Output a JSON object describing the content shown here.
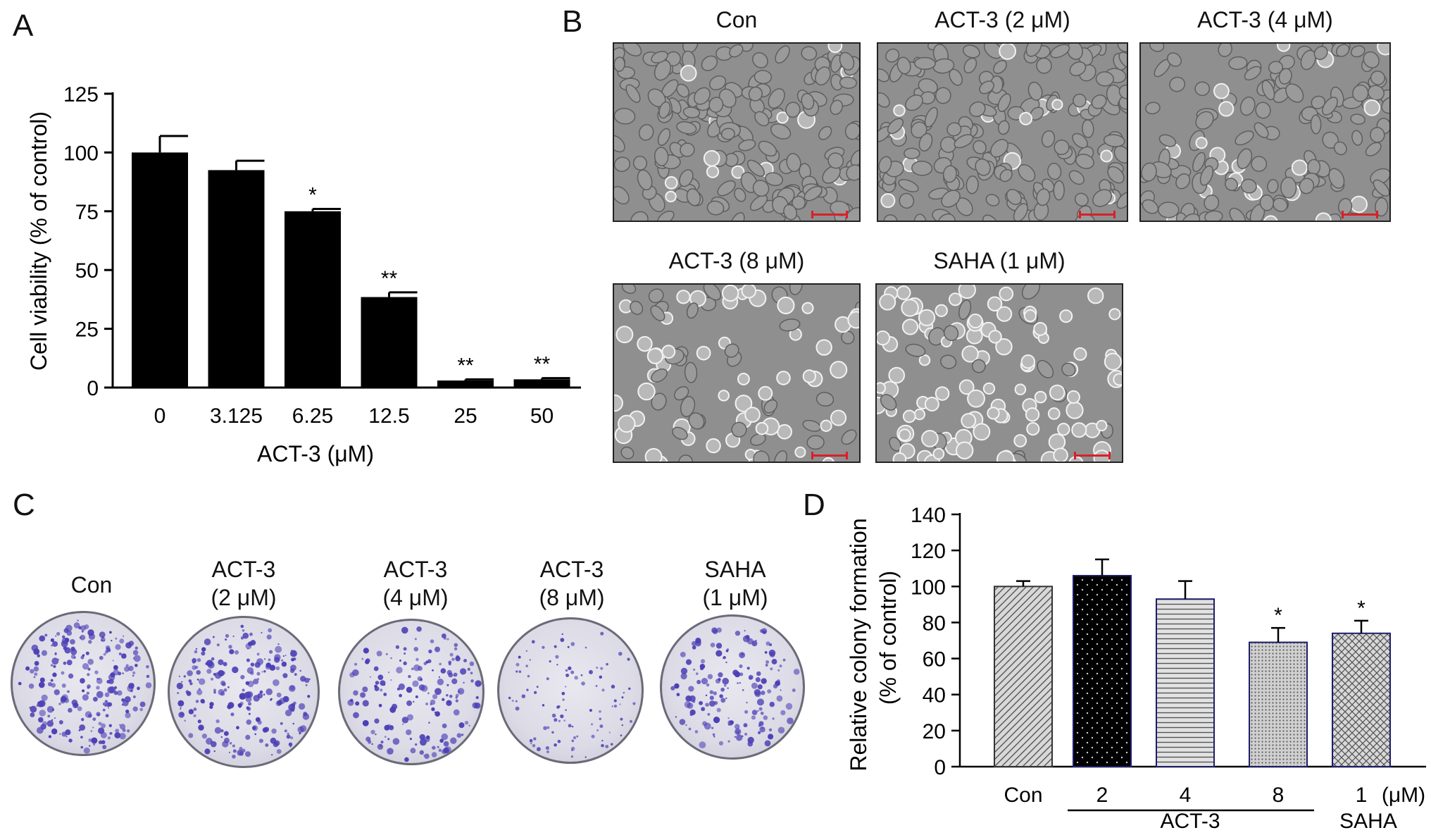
{
  "panels": {
    "A": "A",
    "B": "B",
    "C": "C",
    "D": "D"
  },
  "panelB": {
    "images": [
      {
        "title": "Con"
      },
      {
        "title": "ACT-3 (2 μM)"
      },
      {
        "title": "ACT-3 (4 μM)"
      },
      {
        "title": "ACT-3 (8 μM)"
      },
      {
        "title": "SAHA (1 μM)"
      }
    ],
    "cell_density": [
      1.0,
      1.0,
      0.8,
      0.55,
      0.7
    ],
    "cell_rounding": [
      0.05,
      0.08,
      0.12,
      0.55,
      0.9
    ]
  },
  "panelC": {
    "dishes": [
      {
        "line1": "Con",
        "line2": ""
      },
      {
        "line1": "ACT-3",
        "line2": "(2 μM)"
      },
      {
        "line1": "ACT-3",
        "line2": "(4 μM)"
      },
      {
        "line1": "ACT-3",
        "line2": "(8 μM)"
      },
      {
        "line1": "SAHA",
        "line2": "(1 μM)"
      }
    ],
    "colony_density": [
      1.0,
      0.95,
      0.75,
      0.45,
      0.7
    ],
    "colony_color": "#4b3fb5"
  },
  "chart_data": [
    {
      "panel": "A",
      "type": "bar",
      "categories": [
        "0",
        "3.125",
        "6.25",
        "12.5",
        "25",
        "50"
      ],
      "values": [
        100,
        92.5,
        75,
        38.5,
        3,
        3.5
      ],
      "errors": [
        7,
        4,
        1,
        2,
        0.5,
        0.5
      ],
      "significance": [
        "",
        "",
        "*",
        "**",
        "**",
        "**"
      ],
      "xlabel": "ACT-3 (μM)",
      "ylabel": "Cell viability (% of control)",
      "ylim": [
        0,
        125
      ],
      "yticks": [
        "0",
        "25",
        "50",
        "75",
        "100",
        "125"
      ],
      "bar_color": "#000000"
    },
    {
      "panel": "D",
      "type": "bar",
      "categories": [
        "Con",
        "2",
        "4",
        "8",
        "1"
      ],
      "unit_label": "(μM)",
      "values": [
        100,
        106,
        93,
        69,
        74
      ],
      "errors": [
        3,
        9,
        10,
        8,
        7
      ],
      "significance": [
        "",
        "",
        "",
        "*",
        "*"
      ],
      "patterns": [
        "diagonal",
        "dots",
        "horizontal",
        "dense-dots",
        "crosshatch"
      ],
      "group_labels": [
        {
          "label": "ACT-3",
          "from": 1,
          "to": 3
        },
        {
          "label": "SAHA",
          "from": 4,
          "to": 4
        }
      ],
      "ylabel": "Relative colony formation",
      "ylabel2": "(% of control)",
      "ylim": [
        0,
        140
      ],
      "yticks": [
        "0",
        "20",
        "40",
        "60",
        "80",
        "100",
        "120",
        "140"
      ]
    }
  ]
}
